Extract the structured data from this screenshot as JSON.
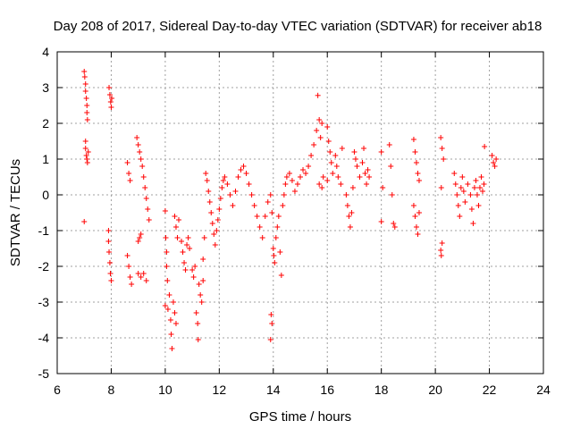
{
  "chart_data": {
    "type": "scatter",
    "title": "Day 208 of 2017, Sidereal Day-to-day VTEC variation (SDTVAR) for receiver ab18",
    "xlabel": "GPS time / hours",
    "ylabel": "SDTVAR / TECUs",
    "xlim": [
      6,
      24
    ],
    "ylim": [
      -5,
      4
    ],
    "xticks": [
      6,
      8,
      10,
      12,
      14,
      16,
      18,
      20,
      22,
      24
    ],
    "yticks": [
      4,
      3,
      2,
      1,
      0,
      -1,
      -2,
      -3,
      -4,
      -5
    ],
    "xtick_labels": [
      "6",
      "8",
      "10",
      "12",
      "14",
      "16",
      "18",
      "20",
      "22",
      "24"
    ],
    "ytick_labels": [
      "4",
      "3",
      "2",
      "1",
      "0",
      "-1",
      "-2",
      "-3",
      "-4",
      "-5"
    ],
    "grid": true,
    "marker": "+",
    "color": "#ff0000",
    "series": [
      {
        "name": "SDTVAR",
        "points": [
          [
            7.0,
            -0.75
          ],
          [
            7.0,
            3.45
          ],
          [
            7.02,
            3.3
          ],
          [
            7.05,
            3.1
          ],
          [
            7.05,
            2.9
          ],
          [
            7.08,
            2.7
          ],
          [
            7.1,
            2.5
          ],
          [
            7.1,
            2.3
          ],
          [
            7.12,
            2.1
          ],
          [
            7.05,
            1.5
          ],
          [
            7.05,
            1.3
          ],
          [
            7.08,
            1.1
          ],
          [
            7.1,
            1.0
          ],
          [
            7.12,
            0.9
          ],
          [
            7.15,
            1.2
          ],
          [
            7.9,
            -1.0
          ],
          [
            7.9,
            -1.3
          ],
          [
            7.92,
            -1.6
          ],
          [
            7.95,
            -1.9
          ],
          [
            7.97,
            -2.2
          ],
          [
            8.0,
            -2.4
          ],
          [
            7.92,
            3.0
          ],
          [
            7.95,
            2.8
          ],
          [
            7.98,
            2.6
          ],
          [
            8.0,
            2.45
          ],
          [
            8.02,
            2.7
          ],
          [
            8.6,
            0.9
          ],
          [
            8.65,
            0.6
          ],
          [
            8.7,
            0.4
          ],
          [
            8.6,
            -1.7
          ],
          [
            8.65,
            -2.0
          ],
          [
            8.7,
            -2.3
          ],
          [
            8.75,
            -2.5
          ],
          [
            8.95,
            1.6
          ],
          [
            9.0,
            1.4
          ],
          [
            9.05,
            1.2
          ],
          [
            9.1,
            1.0
          ],
          [
            9.15,
            0.8
          ],
          [
            9.2,
            0.5
          ],
          [
            9.25,
            0.2
          ],
          [
            9.3,
            -0.1
          ],
          [
            9.35,
            -0.4
          ],
          [
            9.4,
            -0.7
          ],
          [
            9.0,
            -1.3
          ],
          [
            9.05,
            -1.2
          ],
          [
            9.1,
            -1.1
          ],
          [
            9.0,
            -2.2
          ],
          [
            9.1,
            -2.3
          ],
          [
            9.2,
            -2.2
          ],
          [
            9.3,
            -2.4
          ],
          [
            10.0,
            -0.45
          ],
          [
            10.02,
            -1.2
          ],
          [
            10.05,
            -1.6
          ],
          [
            10.05,
            -2.0
          ],
          [
            10.08,
            -2.4
          ],
          [
            10.0,
            -3.1
          ],
          [
            10.1,
            -3.2
          ],
          [
            10.15,
            -2.8
          ],
          [
            10.2,
            -3.5
          ],
          [
            10.22,
            -3.9
          ],
          [
            10.25,
            -4.3
          ],
          [
            10.3,
            -3.0
          ],
          [
            10.35,
            -3.3
          ],
          [
            10.4,
            -3.6
          ],
          [
            10.35,
            -0.6
          ],
          [
            10.4,
            -0.9
          ],
          [
            10.45,
            -1.2
          ],
          [
            10.5,
            -0.7
          ],
          [
            10.6,
            -1.3
          ],
          [
            10.65,
            -1.6
          ],
          [
            10.7,
            -1.9
          ],
          [
            10.75,
            -2.1
          ],
          [
            10.8,
            -1.4
          ],
          [
            10.85,
            -1.2
          ],
          [
            10.9,
            -1.5
          ],
          [
            11.0,
            -2.1
          ],
          [
            11.05,
            -2.3
          ],
          [
            11.1,
            -2.0
          ],
          [
            11.15,
            -3.3
          ],
          [
            11.2,
            -3.6
          ],
          [
            11.22,
            -4.05
          ],
          [
            11.25,
            -2.5
          ],
          [
            11.3,
            -2.8
          ],
          [
            11.35,
            -3.0
          ],
          [
            11.4,
            -2.4
          ],
          [
            11.4,
            -1.8
          ],
          [
            11.45,
            -1.2
          ],
          [
            11.5,
            0.6
          ],
          [
            11.55,
            0.4
          ],
          [
            11.6,
            0.1
          ],
          [
            11.65,
            -0.2
          ],
          [
            11.7,
            -0.5
          ],
          [
            11.75,
            -0.8
          ],
          [
            11.8,
            -1.1
          ],
          [
            11.85,
            -1.4
          ],
          [
            11.9,
            -1.0
          ],
          [
            11.95,
            -0.7
          ],
          [
            12.0,
            -0.4
          ],
          [
            12.05,
            -0.1
          ],
          [
            12.1,
            0.2
          ],
          [
            12.15,
            0.4
          ],
          [
            12.2,
            0.5
          ],
          [
            12.3,
            0.3
          ],
          [
            12.4,
            0.0
          ],
          [
            12.5,
            -0.3
          ],
          [
            12.6,
            0.1
          ],
          [
            12.7,
            0.5
          ],
          [
            12.8,
            0.7
          ],
          [
            12.9,
            0.8
          ],
          [
            13.0,
            0.6
          ],
          [
            13.1,
            0.3
          ],
          [
            13.2,
            0.0
          ],
          [
            13.3,
            -0.3
          ],
          [
            13.4,
            -0.6
          ],
          [
            13.5,
            -0.9
          ],
          [
            13.6,
            -1.2
          ],
          [
            13.7,
            -0.6
          ],
          [
            13.8,
            -0.2
          ],
          [
            13.9,
            0.0
          ],
          [
            13.95,
            -0.5
          ],
          [
            14.0,
            -1.5
          ],
          [
            14.02,
            -1.7
          ],
          [
            14.05,
            -1.9
          ],
          [
            13.92,
            -3.35
          ],
          [
            13.95,
            -3.6
          ],
          [
            13.9,
            -4.05
          ],
          [
            14.1,
            -1.2
          ],
          [
            14.15,
            -0.9
          ],
          [
            14.2,
            -0.6
          ],
          [
            14.25,
            -1.6
          ],
          [
            14.3,
            -2.25
          ],
          [
            14.35,
            -0.3
          ],
          [
            14.4,
            0.0
          ],
          [
            14.45,
            0.3
          ],
          [
            14.5,
            0.5
          ],
          [
            14.6,
            0.6
          ],
          [
            14.7,
            0.4
          ],
          [
            14.8,
            0.1
          ],
          [
            14.9,
            0.3
          ],
          [
            15.0,
            0.5
          ],
          [
            15.1,
            0.7
          ],
          [
            15.2,
            0.6
          ],
          [
            15.3,
            0.8
          ],
          [
            15.4,
            1.1
          ],
          [
            15.5,
            1.4
          ],
          [
            15.6,
            1.8
          ],
          [
            15.7,
            2.1
          ],
          [
            15.65,
            2.78
          ],
          [
            15.8,
            2.0
          ],
          [
            15.75,
            1.6
          ],
          [
            15.7,
            0.3
          ],
          [
            15.8,
            0.2
          ],
          [
            15.85,
            0.5
          ],
          [
            16.0,
            1.9
          ],
          [
            16.05,
            1.5
          ],
          [
            16.1,
            1.2
          ],
          [
            16.15,
            0.9
          ],
          [
            16.2,
            0.6
          ],
          [
            16.0,
            0.4
          ],
          [
            16.3,
            1.1
          ],
          [
            16.35,
            0.8
          ],
          [
            16.4,
            0.5
          ],
          [
            16.5,
            0.3
          ],
          [
            16.55,
            1.3
          ],
          [
            16.7,
            0.0
          ],
          [
            16.75,
            -0.3
          ],
          [
            16.8,
            -0.6
          ],
          [
            16.85,
            -0.9
          ],
          [
            16.9,
            -0.5
          ],
          [
            16.95,
            0.2
          ],
          [
            17.0,
            1.2
          ],
          [
            17.05,
            1.0
          ],
          [
            17.1,
            0.8
          ],
          [
            17.2,
            0.5
          ],
          [
            17.3,
            0.9
          ],
          [
            17.35,
            1.3
          ],
          [
            17.4,
            0.6
          ],
          [
            17.45,
            0.3
          ],
          [
            17.5,
            0.7
          ],
          [
            17.55,
            0.5
          ],
          [
            18.0,
            1.2
          ],
          [
            18.05,
            0.2
          ],
          [
            18.0,
            -0.75
          ],
          [
            18.3,
            1.4
          ],
          [
            18.35,
            0.8
          ],
          [
            18.4,
            0.0
          ],
          [
            18.45,
            -0.8
          ],
          [
            18.5,
            -0.9
          ],
          [
            19.2,
            1.55
          ],
          [
            19.25,
            1.2
          ],
          [
            19.3,
            0.9
          ],
          [
            19.35,
            0.6
          ],
          [
            19.4,
            0.4
          ],
          [
            19.2,
            -0.3
          ],
          [
            19.25,
            -0.6
          ],
          [
            19.3,
            -0.9
          ],
          [
            19.35,
            -1.1
          ],
          [
            19.4,
            -0.5
          ],
          [
            20.2,
            1.6
          ],
          [
            20.25,
            1.3
          ],
          [
            20.3,
            1.0
          ],
          [
            20.22,
            0.2
          ],
          [
            20.25,
            -1.35
          ],
          [
            20.2,
            -1.55
          ],
          [
            20.22,
            -1.7
          ],
          [
            20.7,
            0.6
          ],
          [
            20.75,
            0.3
          ],
          [
            20.8,
            0.0
          ],
          [
            20.85,
            -0.3
          ],
          [
            20.9,
            -0.6
          ],
          [
            20.95,
            0.2
          ],
          [
            21.0,
            0.5
          ],
          [
            21.05,
            0.1
          ],
          [
            21.1,
            -0.2
          ],
          [
            21.2,
            0.3
          ],
          [
            21.3,
            0.0
          ],
          [
            21.35,
            -0.4
          ],
          [
            21.4,
            -0.8
          ],
          [
            21.45,
            0.2
          ],
          [
            21.5,
            0.4
          ],
          [
            21.55,
            0.0
          ],
          [
            21.6,
            -0.3
          ],
          [
            21.65,
            0.2
          ],
          [
            21.7,
            0.5
          ],
          [
            21.75,
            0.1
          ],
          [
            21.8,
            0.3
          ],
          [
            21.82,
            1.35
          ],
          [
            22.1,
            1.1
          ],
          [
            22.15,
            0.9
          ],
          [
            22.2,
            0.8
          ],
          [
            22.25,
            1.0
          ]
        ]
      }
    ]
  }
}
